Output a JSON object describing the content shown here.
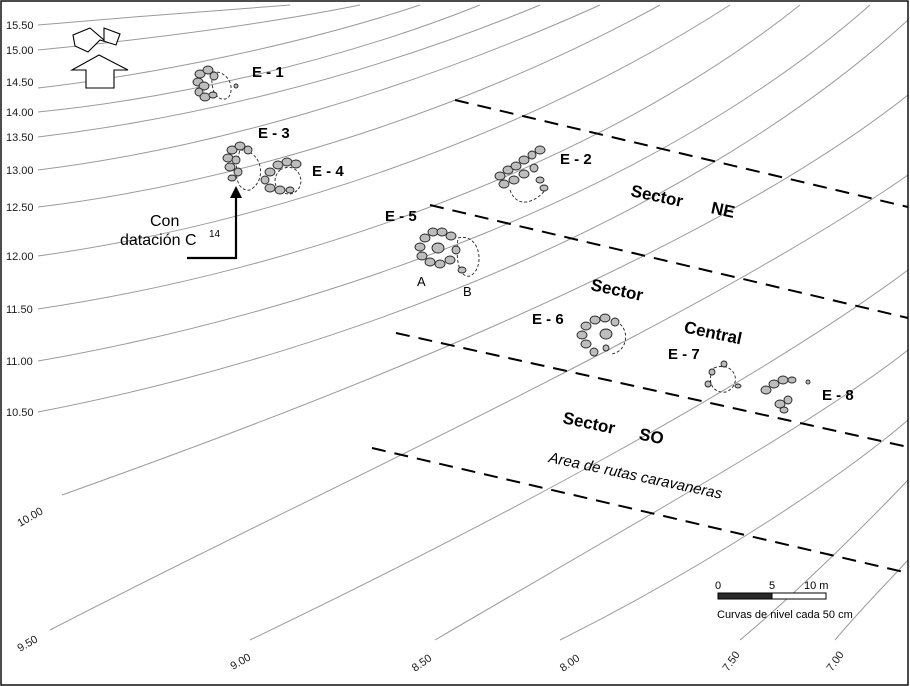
{
  "elevation_labels_left": [
    "15.50",
    "15.00",
    "14.50",
    "14.00",
    "13.50",
    "13.00",
    "12.50",
    "12.00",
    "11.50",
    "11.00",
    "10.50"
  ],
  "elevation_labels_rotated": [
    "10.00",
    "9.50",
    "9.00",
    "8.50",
    "8.00",
    "7.50",
    "7.00"
  ],
  "structures": {
    "e1": "E - 1",
    "e2": "E - 2",
    "e3": "E - 3",
    "e4": "E - 4",
    "e5": "E - 5",
    "e6": "E - 6",
    "e7": "E - 7",
    "e8": "E - 8",
    "e5_sub_a": "A",
    "e5_sub_b": "B"
  },
  "sectors": {
    "ne_word": "Sector",
    "ne_code": "NE",
    "central_word": "Sector",
    "central_code": "Central",
    "so_word": "Sector",
    "so_code": "SO"
  },
  "annotations": {
    "dating_line1": "Con",
    "dating_line2": "datación C",
    "dating_superscript": "14",
    "routes": "Area de rutas caravaneras"
  },
  "scale_bar": {
    "tick_0": "0",
    "tick_5": "5",
    "tick_10": "10 m",
    "caption": "Curvas de nivel cada 50 cm"
  },
  "icons": {
    "north_arrow": "north-arrow-icon"
  },
  "colors": {
    "contour": "#9a9a9a",
    "stone_fill": "#bdbdbd",
    "ink": "#000000"
  }
}
